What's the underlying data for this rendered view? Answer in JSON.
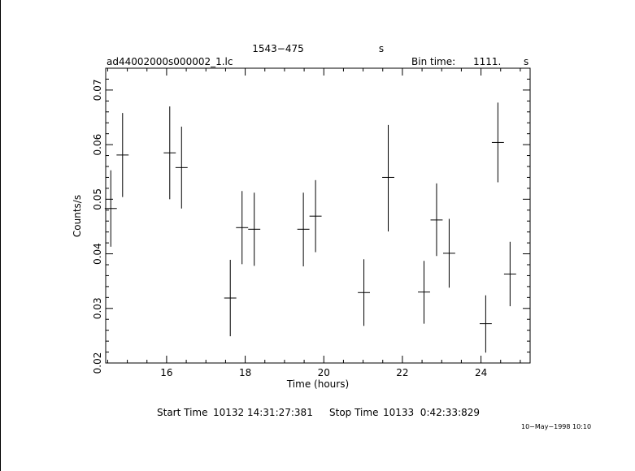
{
  "header": {
    "source": "1543−475",
    "source_suffix": "s",
    "filename": "ad44002000s000002_1.lc",
    "bin_label": "Bin time:",
    "bin_value": "1111.",
    "bin_unit": "s"
  },
  "footer": {
    "start_label": "Start Time",
    "start_value": "10132 14:31:27:381",
    "stop_label": "Stop Time",
    "stop_value": "10133  0:42:33:829",
    "plot_date": "10−May−1998 10:10"
  },
  "chart_data": {
    "type": "scatter",
    "xlabel": "Time (hours)",
    "ylabel": "Counts/s",
    "xlim": [
      14.45,
      25.25
    ],
    "ylim": [
      0.02,
      0.074
    ],
    "x_ticks": [
      16,
      18,
      20,
      22,
      24
    ],
    "y_ticks": [
      0.02,
      0.03,
      0.04,
      0.05,
      0.06,
      0.07
    ],
    "x_tick_labels": [
      "16",
      "18",
      "20",
      "22",
      "24"
    ],
    "y_tick_labels": [
      "0.02",
      "0.03",
      "0.04",
      "0.05",
      "0.06",
      "0.07"
    ],
    "grid": false,
    "points": [
      {
        "x": 14.58,
        "y": 0.0483,
        "x_err": 0.154,
        "y_low": 0.0413,
        "y_high": 0.0553
      },
      {
        "x": 14.88,
        "y": 0.0581,
        "x_err": 0.154,
        "y_low": 0.0504,
        "y_high": 0.0658
      },
      {
        "x": 16.08,
        "y": 0.0585,
        "x_err": 0.154,
        "y_low": 0.05,
        "y_high": 0.067
      },
      {
        "x": 16.38,
        "y": 0.0558,
        "x_err": 0.154,
        "y_low": 0.0483,
        "y_high": 0.0633
      },
      {
        "x": 17.62,
        "y": 0.0319,
        "x_err": 0.154,
        "y_low": 0.0249,
        "y_high": 0.0389
      },
      {
        "x": 17.92,
        "y": 0.0448,
        "x_err": 0.154,
        "y_low": 0.0381,
        "y_high": 0.0515
      },
      {
        "x": 18.23,
        "y": 0.0445,
        "x_err": 0.154,
        "y_low": 0.0378,
        "y_high": 0.0512
      },
      {
        "x": 19.48,
        "y": 0.0445,
        "x_err": 0.154,
        "y_low": 0.0377,
        "y_high": 0.0512
      },
      {
        "x": 19.79,
        "y": 0.0469,
        "x_err": 0.154,
        "y_low": 0.0403,
        "y_high": 0.0535
      },
      {
        "x": 21.02,
        "y": 0.0329,
        "x_err": 0.154,
        "y_low": 0.0268,
        "y_high": 0.039
      },
      {
        "x": 21.64,
        "y": 0.054,
        "x_err": 0.154,
        "y_low": 0.0441,
        "y_high": 0.0636
      },
      {
        "x": 22.55,
        "y": 0.033,
        "x_err": 0.154,
        "y_low": 0.0272,
        "y_high": 0.0387
      },
      {
        "x": 22.87,
        "y": 0.0462,
        "x_err": 0.154,
        "y_low": 0.0396,
        "y_high": 0.0529
      },
      {
        "x": 23.19,
        "y": 0.0401,
        "x_err": 0.154,
        "y_low": 0.0338,
        "y_high": 0.0464
      },
      {
        "x": 24.12,
        "y": 0.0272,
        "x_err": 0.154,
        "y_low": 0.0219,
        "y_high": 0.0324
      },
      {
        "x": 24.43,
        "y": 0.0604,
        "x_err": 0.154,
        "y_low": 0.0531,
        "y_high": 0.0677
      },
      {
        "x": 24.74,
        "y": 0.0363,
        "x_err": 0.154,
        "y_low": 0.0304,
        "y_high": 0.0422
      }
    ]
  }
}
